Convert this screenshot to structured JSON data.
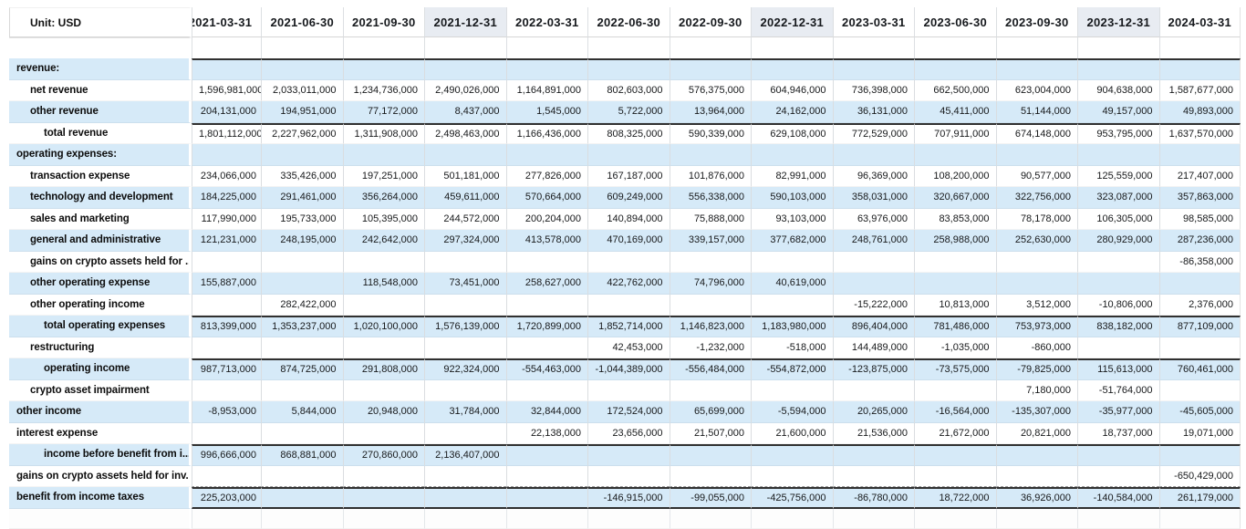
{
  "unit_label": "Unit: USD",
  "colors": {
    "row_highlight_blue": "#d6eaf8",
    "header_column_highlight": "#e8ecf2",
    "total_rule_dark": "#303030"
  },
  "columns": [
    {
      "label": "2021-03-31",
      "highlighted": false
    },
    {
      "label": "2021-06-30",
      "highlighted": false
    },
    {
      "label": "2021-09-30",
      "highlighted": false
    },
    {
      "label": "2021-12-31",
      "highlighted": true
    },
    {
      "label": "2022-03-31",
      "highlighted": false
    },
    {
      "label": "2022-06-30",
      "highlighted": false
    },
    {
      "label": "2022-09-30",
      "highlighted": false
    },
    {
      "label": "2022-12-31",
      "highlighted": true
    },
    {
      "label": "2023-03-31",
      "highlighted": false
    },
    {
      "label": "2023-06-30",
      "highlighted": false
    },
    {
      "label": "2023-09-30",
      "highlighted": false
    },
    {
      "label": "2023-12-31",
      "highlighted": true
    },
    {
      "label": "2024-03-31",
      "highlighted": false
    }
  ],
  "rows": [
    {
      "label": "revenue:",
      "kind": "section-header",
      "indent": 0,
      "shade": "blue",
      "thick_top": true,
      "values": [
        "",
        "",
        "",
        "",
        "",
        "",
        "",
        "",
        "",
        "",
        "",
        "",
        ""
      ]
    },
    {
      "label": "net revenue",
      "kind": "line-item",
      "indent": 1,
      "shade": "white",
      "values": [
        "1,596,981,000",
        "2,033,011,000",
        "1,234,736,000",
        "2,490,026,000",
        "1,164,891,000",
        "802,603,000",
        "576,375,000",
        "604,946,000",
        "736,398,000",
        "662,500,000",
        "623,004,000",
        "904,638,000",
        "1,587,677,000"
      ]
    },
    {
      "label": "other revenue",
      "kind": "line-item",
      "indent": 1,
      "shade": "blue",
      "values": [
        "204,131,000",
        "194,951,000",
        "77,172,000",
        "8,437,000",
        "1,545,000",
        "5,722,000",
        "13,964,000",
        "24,162,000",
        "36,131,000",
        "45,411,000",
        "51,144,000",
        "49,157,000",
        "49,893,000"
      ]
    },
    {
      "label": "total revenue",
      "kind": "subtotal",
      "indent": 2,
      "shade": "white",
      "thick_top": true,
      "values": [
        "1,801,112,000",
        "2,227,962,000",
        "1,311,908,000",
        "2,498,463,000",
        "1,166,436,000",
        "808,325,000",
        "590,339,000",
        "629,108,000",
        "772,529,000",
        "707,911,000",
        "674,148,000",
        "953,795,000",
        "1,637,570,000"
      ]
    },
    {
      "label": "operating expenses:",
      "kind": "section-header",
      "indent": 0,
      "shade": "blue",
      "values": [
        "",
        "",
        "",
        "",
        "",
        "",
        "",
        "",
        "",
        "",
        "",
        "",
        ""
      ]
    },
    {
      "label": "transaction expense",
      "kind": "line-item",
      "indent": 1,
      "shade": "white",
      "values": [
        "234,066,000",
        "335,426,000",
        "197,251,000",
        "501,181,000",
        "277,826,000",
        "167,187,000",
        "101,876,000",
        "82,991,000",
        "96,369,000",
        "108,200,000",
        "90,577,000",
        "125,559,000",
        "217,407,000"
      ]
    },
    {
      "label": "technology and development",
      "kind": "line-item",
      "indent": 1,
      "shade": "blue",
      "values": [
        "184,225,000",
        "291,461,000",
        "356,264,000",
        "459,611,000",
        "570,664,000",
        "609,249,000",
        "556,338,000",
        "590,103,000",
        "358,031,000",
        "320,667,000",
        "322,756,000",
        "323,087,000",
        "357,863,000"
      ]
    },
    {
      "label": "sales and marketing",
      "kind": "line-item",
      "indent": 1,
      "shade": "white",
      "values": [
        "117,990,000",
        "195,733,000",
        "105,395,000",
        "244,572,000",
        "200,204,000",
        "140,894,000",
        "75,888,000",
        "93,103,000",
        "63,976,000",
        "83,853,000",
        "78,178,000",
        "106,305,000",
        "98,585,000"
      ]
    },
    {
      "label": "general and administrative",
      "kind": "line-item",
      "indent": 1,
      "shade": "blue",
      "values": [
        "121,231,000",
        "248,195,000",
        "242,642,000",
        "297,324,000",
        "413,578,000",
        "470,169,000",
        "339,157,000",
        "377,682,000",
        "248,761,000",
        "258,988,000",
        "252,630,000",
        "280,929,000",
        "287,236,000"
      ]
    },
    {
      "label": "gains on crypto assets held for ...",
      "kind": "line-item",
      "indent": 1,
      "shade": "white",
      "values": [
        "",
        "",
        "",
        "",
        "",
        "",
        "",
        "",
        "",
        "",
        "",
        "",
        "-86,358,000"
      ]
    },
    {
      "label": "other operating expense",
      "kind": "line-item",
      "indent": 1,
      "shade": "blue",
      "values": [
        "155,887,000",
        "",
        "118,548,000",
        "73,451,000",
        "258,627,000",
        "422,762,000",
        "74,796,000",
        "40,619,000",
        "",
        "",
        "",
        "",
        ""
      ]
    },
    {
      "label": "other operating income",
      "kind": "line-item",
      "indent": 1,
      "shade": "white",
      "values": [
        "",
        "282,422,000",
        "",
        "",
        "",
        "",
        "",
        "",
        "-15,222,000",
        "10,813,000",
        "3,512,000",
        "-10,806,000",
        "2,376,000"
      ]
    },
    {
      "label": "total operating expenses",
      "kind": "subtotal",
      "indent": 2,
      "shade": "blue",
      "thick_top": true,
      "values": [
        "813,399,000",
        "1,353,237,000",
        "1,020,100,000",
        "1,576,139,000",
        "1,720,899,000",
        "1,852,714,000",
        "1,146,823,000",
        "1,183,980,000",
        "896,404,000",
        "781,486,000",
        "753,973,000",
        "838,182,000",
        "877,109,000"
      ]
    },
    {
      "label": "restructuring",
      "kind": "line-item",
      "indent": 1,
      "shade": "white",
      "values": [
        "",
        "",
        "",
        "",
        "",
        "42,453,000",
        "-1,232,000",
        "-518,000",
        "144,489,000",
        "-1,035,000",
        "-860,000",
        "",
        ""
      ]
    },
    {
      "label": "operating income",
      "kind": "subtotal",
      "indent": 2,
      "shade": "blue",
      "thick_top": true,
      "values": [
        "987,713,000",
        "874,725,000",
        "291,808,000",
        "922,324,000",
        "-554,463,000",
        "-1,044,389,000",
        "-556,484,000",
        "-554,872,000",
        "-123,875,000",
        "-73,575,000",
        "-79,825,000",
        "115,613,000",
        "760,461,000"
      ]
    },
    {
      "label": "crypto asset impairment",
      "kind": "line-item",
      "indent": 1,
      "shade": "white",
      "values": [
        "",
        "",
        "",
        "",
        "",
        "",
        "",
        "",
        "",
        "",
        "7,180,000",
        "-51,764,000",
        ""
      ]
    },
    {
      "label": "other income",
      "kind": "line-item",
      "indent": 0,
      "shade": "blue",
      "values": [
        "-8,953,000",
        "5,844,000",
        "20,948,000",
        "31,784,000",
        "32,844,000",
        "172,524,000",
        "65,699,000",
        "-5,594,000",
        "20,265,000",
        "-16,564,000",
        "-135,307,000",
        "-35,977,000",
        "-45,605,000"
      ]
    },
    {
      "label": "interest expense",
      "kind": "line-item",
      "indent": 0,
      "shade": "white",
      "values": [
        "",
        "",
        "",
        "",
        "22,138,000",
        "23,656,000",
        "21,507,000",
        "21,600,000",
        "21,536,000",
        "21,672,000",
        "20,821,000",
        "18,737,000",
        "19,071,000"
      ]
    },
    {
      "label": "income before benefit from i...",
      "kind": "subtotal",
      "indent": 2,
      "shade": "blue",
      "thick_top": true,
      "values": [
        "996,666,000",
        "868,881,000",
        "270,860,000",
        "2,136,407,000",
        "",
        "",
        "",
        "",
        "",
        "",
        "",
        "",
        ""
      ]
    },
    {
      "label": "gains on crypto assets held for inv...",
      "kind": "line-item",
      "indent": 0,
      "shade": "white",
      "dashed_bottom": true,
      "values": [
        "",
        "",
        "",
        "",
        "",
        "",
        "",
        "",
        "",
        "",
        "",
        "",
        "-650,429,000"
      ]
    },
    {
      "label": "benefit from income taxes",
      "kind": "line-item",
      "indent": 0,
      "shade": "blue",
      "thick_top": true,
      "thick_bottom": true,
      "values": [
        "225,203,000",
        "",
        "",
        "",
        "",
        "-146,915,000",
        "-99,055,000",
        "-425,756,000",
        "-86,780,000",
        "18,722,000",
        "36,926,000",
        "-140,584,000",
        "261,179,000"
      ]
    }
  ]
}
